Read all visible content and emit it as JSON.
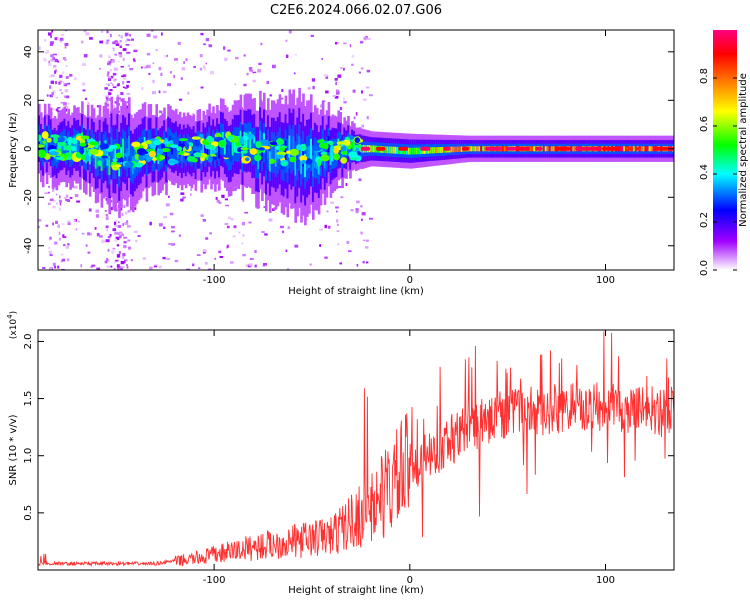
{
  "title": "C2E6.2024.066.02.07.G06",
  "chart_data": [
    {
      "type": "heatmap",
      "xlabel": "Height of straight line (km)",
      "ylabel": "Frequency (Hz)",
      "xlim": [
        -190,
        135
      ],
      "ylim": [
        -50,
        49
      ],
      "x_ticks": [
        -100,
        0,
        100
      ],
      "y_ticks": [
        -40,
        -20,
        0,
        20,
        40
      ],
      "ridge": [
        {
          "x": -185,
          "f": 1,
          "amp": 0.35,
          "width": 8
        },
        {
          "x": -165,
          "f": 0,
          "amp": 0.45,
          "width": 9
        },
        {
          "x": -150,
          "f": -4,
          "amp": 0.4,
          "width": 12
        },
        {
          "x": -130,
          "f": -1,
          "amp": 0.35,
          "width": 9
        },
        {
          "x": -110,
          "f": 0,
          "amp": 0.3,
          "width": 8
        },
        {
          "x": -90,
          "f": 1,
          "amp": 0.4,
          "width": 10
        },
        {
          "x": -70,
          "f": -1,
          "amp": 0.35,
          "width": 12
        },
        {
          "x": -55,
          "f": -4,
          "amp": 0.35,
          "width": 14
        },
        {
          "x": -40,
          "f": -1,
          "amp": 0.35,
          "width": 9
        },
        {
          "x": -28,
          "f": 0,
          "amp": 0.5,
          "width": 5
        },
        {
          "x": -20,
          "f": 0,
          "amp": 0.6,
          "width": 4
        },
        {
          "x": 0,
          "f": -1,
          "amp": 0.55,
          "width": 4
        },
        {
          "x": 30,
          "f": 0,
          "amp": 0.8,
          "width": 3
        },
        {
          "x": 60,
          "f": 0,
          "amp": 0.8,
          "width": 3
        },
        {
          "x": 90,
          "f": 0,
          "amp": 0.85,
          "width": 3
        },
        {
          "x": 115,
          "f": 0,
          "amp": 0.85,
          "width": 3
        },
        {
          "x": 135,
          "f": 0,
          "amp": 0.9,
          "width": 3
        }
      ],
      "colorbar": {
        "label": "Normalized spectral amplitude",
        "range": [
          0,
          1
        ],
        "ticks": [
          "0.0",
          "0.2",
          "0.4",
          "0.6",
          "0.8"
        ],
        "stops": [
          "#ffffff",
          "#a000ff",
          "#0000ff",
          "#00ffff",
          "#00ff00",
          "#ffff00",
          "#ff8000",
          "#ff0000",
          "#ff0080"
        ]
      }
    },
    {
      "type": "line",
      "xlabel": "Height of straight line (km)",
      "ylabel": "SNR (10 * v/v)",
      "scale_label": "(x10",
      "scale_exp": "4",
      "scale_close": ")",
      "xlim": [
        -190,
        135
      ],
      "ylim": [
        0,
        2.1
      ],
      "x_ticks": [
        -100,
        0,
        100
      ],
      "y_ticks": [
        "0.5",
        "1.0",
        "1.5",
        "2.0"
      ],
      "color": "#ff3030",
      "trend": [
        {
          "x": -190,
          "snr": 0.05
        },
        {
          "x": -130,
          "snr": 0.05
        },
        {
          "x": -110,
          "snr": 0.1
        },
        {
          "x": -80,
          "snr": 0.2
        },
        {
          "x": -40,
          "snr": 0.3
        },
        {
          "x": -20,
          "snr": 0.55
        },
        {
          "x": 0,
          "snr": 0.9
        },
        {
          "x": 20,
          "snr": 1.15
        },
        {
          "x": 40,
          "snr": 1.35
        },
        {
          "x": 60,
          "snr": 1.4
        },
        {
          "x": 80,
          "snr": 1.45
        },
        {
          "x": 100,
          "snr": 1.45
        },
        {
          "x": 135,
          "snr": 1.4
        }
      ]
    }
  ]
}
